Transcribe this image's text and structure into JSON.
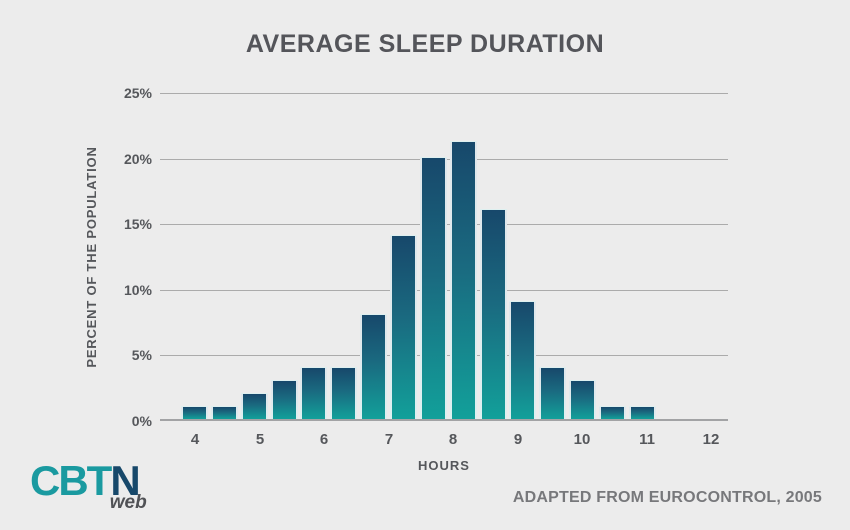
{
  "title": "AVERAGE SLEEP DURATION",
  "attribution": "ADAPTED FROM EUROCONTROL, 2005",
  "logo": {
    "part_teal": "CBT",
    "part_navy": "N",
    "sub": "web"
  },
  "colors": {
    "background": "#ECECEC",
    "bar_gradient_top": "#17486B",
    "bar_gradient_bottom": "#12A09A",
    "logo_teal": "#1A9AA0",
    "logo_navy": "#17486A",
    "gridline": "#ABABAB",
    "text": "#55575B"
  },
  "chart_data": {
    "type": "bar",
    "title": "AVERAGE SLEEP DURATION",
    "xlabel": "HOURS",
    "ylabel": "PERCENT OF THE POPULATION",
    "x": [
      4,
      4.5,
      5,
      5.5,
      6,
      6.5,
      7,
      7.5,
      8,
      8.5,
      9,
      9.5,
      10,
      10.5,
      11,
      11.5
    ],
    "values": [
      1,
      1,
      2,
      3,
      4,
      4,
      8,
      14,
      20,
      21.2,
      16,
      9,
      4,
      3,
      1,
      1
    ],
    "xticks": [
      4,
      5,
      6,
      7,
      8,
      9,
      10,
      11,
      12
    ],
    "ytick_labels": [
      "0%",
      "5%",
      "10%",
      "15%",
      "20%",
      "25%"
    ],
    "ytick_values": [
      0,
      5,
      10,
      15,
      20,
      25
    ],
    "xlim": [
      4,
      12
    ],
    "ylim": [
      0,
      25
    ],
    "grid": true,
    "legend": false,
    "bar_gradient": [
      "#17486B",
      "#12A09A"
    ]
  }
}
